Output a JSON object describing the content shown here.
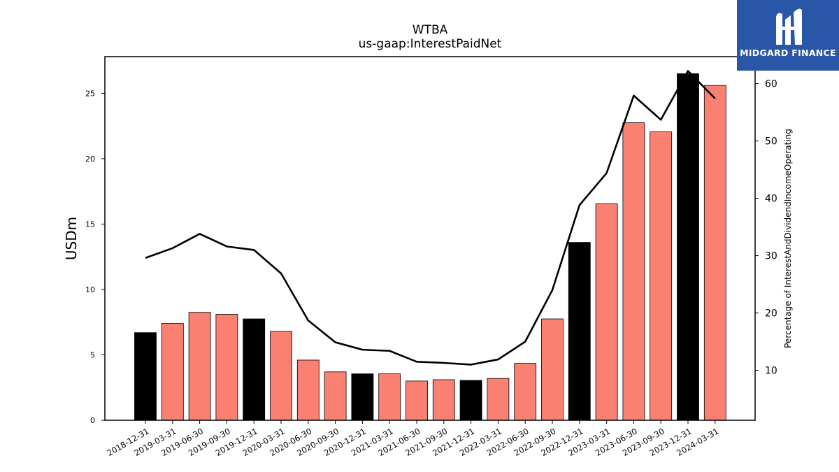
{
  "chart_data": {
    "type": "bar",
    "title": "WTBA",
    "subtitle": "us-gaap:InterestPaidNet",
    "ylabel": "USDm",
    "y2label": "Percentage of InterestAndDividendIncomeOperating",
    "ylim": [
      0,
      27.8
    ],
    "y2lim": [
      1.3,
      64.7
    ],
    "yticks": [
      0,
      5,
      10,
      15,
      20,
      25
    ],
    "y2ticks": [
      10,
      20,
      30,
      40,
      50,
      60
    ],
    "grid": false,
    "colors": {
      "q4": "#000000",
      "other": "#fa8072",
      "line": "#000000"
    },
    "categories": [
      "2018-12-31",
      "2019-03-31",
      "2019-06-30",
      "2019-09-30",
      "2019-12-31",
      "2020-03-31",
      "2020-06-30",
      "2020-09-30",
      "2020-12-31",
      "2021-03-31",
      "2021-06-30",
      "2021-09-30",
      "2021-12-31",
      "2022-03-31",
      "2022-06-30",
      "2022-09-30",
      "2022-12-31",
      "2023-03-31",
      "2023-06-30",
      "2023-09-30",
      "2023-12-31",
      "2024-03-31"
    ],
    "series": [
      {
        "type": "bar",
        "values": [
          6.7,
          7.4,
          8.25,
          8.1,
          7.75,
          6.8,
          4.6,
          3.7,
          3.55,
          3.55,
          3.0,
          3.1,
          3.05,
          3.2,
          4.35,
          7.75,
          13.6,
          16.55,
          22.75,
          22.05,
          26.5,
          25.6
        ],
        "highlight": [
          true,
          false,
          false,
          false,
          true,
          false,
          false,
          false,
          true,
          false,
          false,
          false,
          true,
          false,
          false,
          false,
          true,
          false,
          false,
          false,
          true,
          false
        ]
      },
      {
        "type": "line",
        "axis": "right",
        "values": [
          29.6,
          31.3,
          33.8,
          31.6,
          31.0,
          26.9,
          18.7,
          14.9,
          13.6,
          13.4,
          11.5,
          11.3,
          11.0,
          11.9,
          15.0,
          24.0,
          38.8,
          44.4,
          57.9,
          53.7,
          62.2,
          57.4
        ]
      }
    ]
  },
  "logo": {
    "text": "MIDGARD FINANCE"
  }
}
